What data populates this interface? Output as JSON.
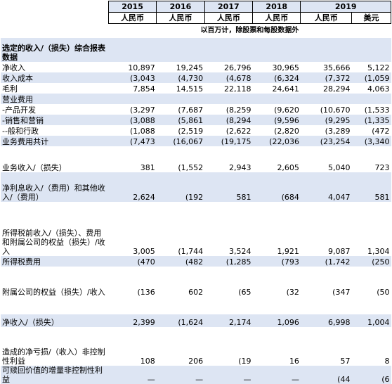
{
  "header": {
    "years": [
      "2015",
      "2016",
      "2017",
      "2018",
      "2019"
    ],
    "currencies": [
      "人民币",
      "人民币",
      "人民币",
      "人民币",
      "人民币",
      "美元"
    ],
    "unit_note": "以百万计，除股票和每股数据外"
  },
  "rows": [
    {
      "label": "选定的收入/（损失）综合报表数据",
      "values": [
        "",
        "",
        "",
        "",
        "",
        ""
      ],
      "bold": true,
      "shade": true
    },
    {
      "label": "净收入",
      "values": [
        "10,897",
        "19,245",
        "26,796",
        "30,965",
        "35,666",
        "5,122"
      ],
      "shade": false
    },
    {
      "label": "收入成本",
      "values": [
        "(3,043",
        "(4,730",
        "(4,678",
        "(6,324",
        "(7,372",
        "(1,059"
      ],
      "shade": true
    },
    {
      "label": "毛利",
      "values": [
        "7,854",
        "14,515",
        "22,118",
        "24,641",
        "28,294",
        "4,063"
      ],
      "shade": false
    },
    {
      "label": "营业费用",
      "values": [
        "",
        "",
        "",
        "",
        "",
        ""
      ],
      "shade": true
    },
    {
      "label": "-产品开发",
      "values": [
        "(3,297",
        "(7,687",
        "(8,259",
        "(9,620",
        "(10,670",
        "(1,533"
      ],
      "shade": false
    },
    {
      "label": "-销售和营销",
      "values": [
        "(3,088",
        "(5,861",
        "(8,294",
        "(9,596",
        "(9,295",
        "(1,335"
      ],
      "shade": true
    },
    {
      "label": "--般和行政",
      "values": [
        "(1,088",
        "(2,519",
        "(2,622",
        "(2,820",
        "(3,289",
        "(472"
      ],
      "shade": false
    },
    {
      "label": "业务费用共计",
      "values": [
        "(7,473",
        "(16,067",
        "(19,175",
        "(22,036",
        "(23,254",
        "(3,340"
      ],
      "shade": true
    },
    {
      "label": "",
      "values": [
        "",
        "",
        "",
        "",
        "",
        ""
      ],
      "shade": false
    },
    {
      "label": "业务收入/（损失）",
      "values": [
        "381",
        "(1,552",
        "2,943",
        "2,605",
        "5,040",
        "723"
      ],
      "shade": false
    },
    {
      "label": "净利息收入/（费用）和其他收入/（费用）",
      "values": [
        "2,624",
        "(192",
        "581",
        "(684",
        "4,047",
        "581"
      ],
      "shade": true
    },
    {
      "label": "",
      "values": [
        "",
        "",
        "",
        "",
        "",
        ""
      ],
      "shade": false
    },
    {
      "label": "所得税前收入/（损失）、费用和附属公司的权益（损失）/收入",
      "values": [
        "3,005",
        "(1,744",
        "3,524",
        "1,921",
        "9,087",
        "1,304"
      ],
      "shade": false
    },
    {
      "label": "所得税费用",
      "values": [
        "(470",
        "(482",
        "(1,285",
        "(793",
        "(1,742",
        "(250"
      ],
      "shade": true
    },
    {
      "label": "附属公司的权益（损失）/收入",
      "values": [
        "(136",
        "602",
        "(65",
        "(32",
        "(347",
        "(50"
      ],
      "shade": false
    },
    {
      "label": "",
      "values": [
        "",
        "",
        "",
        "",
        "",
        ""
      ],
      "shade": false
    },
    {
      "label": "净收入/（损失）",
      "values": [
        "2,399",
        "(1,624",
        "2,174",
        "1,096",
        "6,998",
        "1,004"
      ],
      "shade": true
    },
    {
      "label": "",
      "values": [
        "",
        "",
        "",
        "",
        "",
        ""
      ],
      "shade": false
    },
    {
      "label": "造成的净亏损/（收入）非控制性利益",
      "values": [
        "108",
        "206",
        "(19",
        "16",
        "57",
        "8"
      ],
      "shade": false
    },
    {
      "label": "可赎回价值的增量非控制性利益",
      "values": [
        "—",
        "—",
        "—",
        "—",
        "(44",
        "(6"
      ],
      "shade": true
    }
  ]
}
